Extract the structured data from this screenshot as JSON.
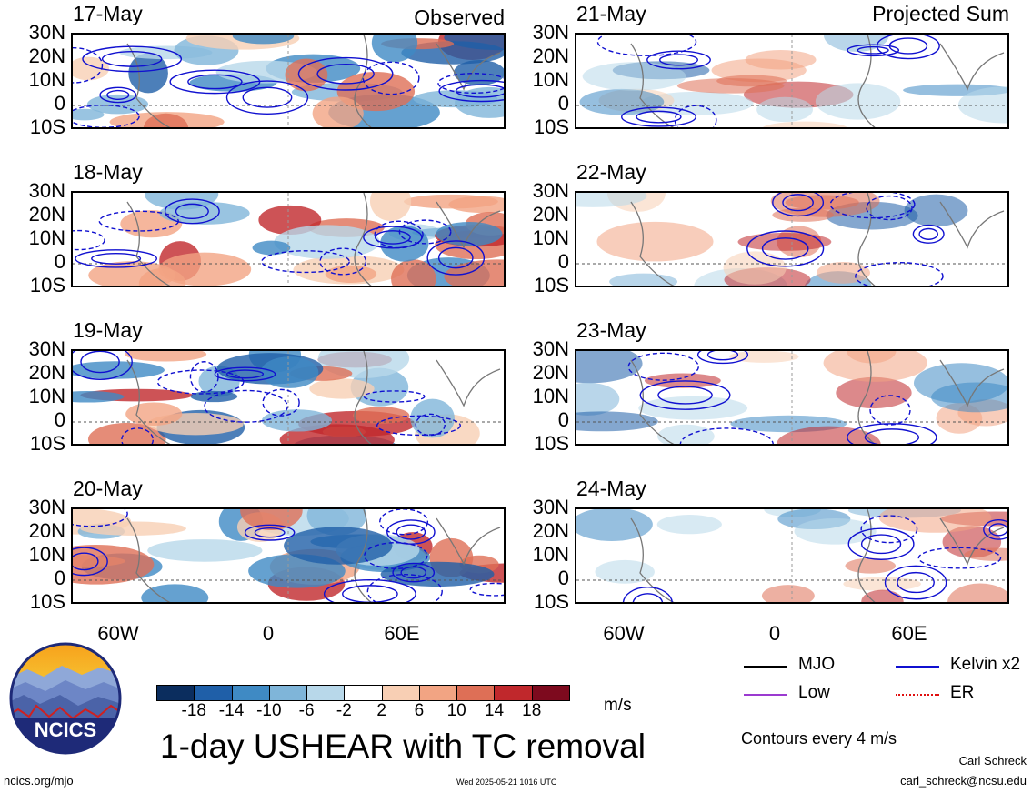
{
  "left_header": "Observed",
  "right_header": "Projected Sum",
  "left_dates": [
    "17-May",
    "18-May",
    "19-May",
    "20-May"
  ],
  "right_dates": [
    "21-May",
    "22-May",
    "23-May",
    "24-May"
  ],
  "lat_labels": [
    "30N",
    "20N",
    "10N",
    "0",
    "10S"
  ],
  "lon_labels": [
    "60W",
    "0",
    "60E"
  ],
  "colorbar": {
    "colors": [
      "#0b2d5e",
      "#1f5fa8",
      "#3f8ac4",
      "#7fb5d9",
      "#b8d8ea",
      "#ffffff",
      "#f8cfb4",
      "#f2a483",
      "#de6f56",
      "#c0282c",
      "#7d0a1e"
    ],
    "labels": [
      "-18",
      "-14",
      "-10",
      "-6",
      "-2",
      "2",
      "6",
      "10",
      "14",
      "18"
    ],
    "units": "m/s"
  },
  "title": "1-day USHEAR with TC removal",
  "legend": {
    "items": [
      {
        "label": "MJO",
        "color": "#000000"
      },
      {
        "label": "Kelvin x2",
        "color": "#1010d0"
      },
      {
        "label": "Low",
        "color": "#9b3ad0"
      },
      {
        "label": "ER",
        "color": "#e01010"
      }
    ],
    "note": "Contours every 4 m/s"
  },
  "logo_text": "NCICS",
  "footer": {
    "left": "ncics.org/mjo",
    "center": "Wed 2025-05-21 1016 UTC",
    "author": "Carl Schreck",
    "email": "carl_schreck@ncsu.edu"
  }
}
